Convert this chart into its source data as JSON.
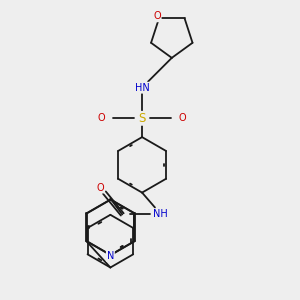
{
  "bg_color": "#eeeeee",
  "bond_color": "#1a1a1a",
  "atom_colors": {
    "N": "#0000cc",
    "O": "#cc0000",
    "S": "#ccaa00",
    "C": "#1a1a1a"
  },
  "figsize": [
    3.0,
    3.0
  ],
  "dpi": 100
}
